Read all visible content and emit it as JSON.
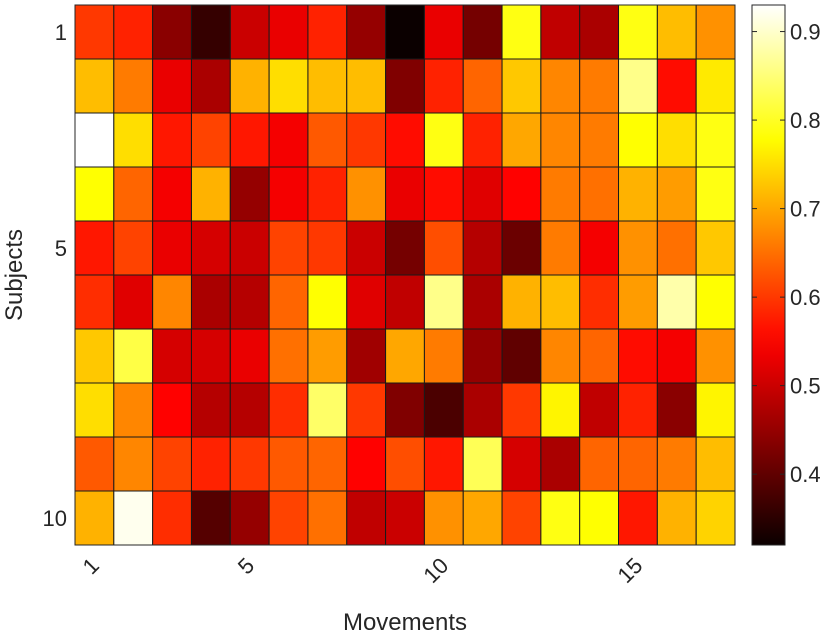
{
  "chart_data": {
    "type": "heatmap",
    "xlabel": "Movements",
    "ylabel": "Subjects",
    "x_ticks": [
      "1",
      "5",
      "10",
      "15"
    ],
    "x_tick_values": [
      1,
      5,
      10,
      15
    ],
    "y_ticks": [
      "1",
      "5",
      "10"
    ],
    "y_tick_values": [
      1,
      5,
      10
    ],
    "n_cols": 17,
    "n_rows": 10,
    "colormap": "hot",
    "clim": [
      0.32,
      0.93
    ],
    "colorbar_ticks": [
      "0.4",
      "0.5",
      "0.6",
      "0.7",
      "0.8",
      "0.9"
    ],
    "colorbar_tick_values": [
      0.4,
      0.5,
      0.6,
      0.7,
      0.8,
      0.9
    ],
    "values": [
      [
        0.6,
        0.58,
        0.44,
        0.36,
        0.5,
        0.53,
        0.58,
        0.45,
        0.32,
        0.53,
        0.42,
        0.79,
        0.49,
        0.47,
        0.79,
        0.72,
        0.68
      ],
      [
        0.72,
        0.66,
        0.53,
        0.47,
        0.71,
        0.75,
        0.72,
        0.72,
        0.43,
        0.58,
        0.64,
        0.73,
        0.67,
        0.66,
        0.86,
        0.56,
        0.76
      ],
      [
        0.93,
        0.75,
        0.57,
        0.61,
        0.57,
        0.54,
        0.63,
        0.6,
        0.56,
        0.79,
        0.58,
        0.7,
        0.67,
        0.66,
        0.78,
        0.75,
        0.79
      ],
      [
        0.78,
        0.64,
        0.54,
        0.71,
        0.45,
        0.54,
        0.58,
        0.68,
        0.53,
        0.56,
        0.52,
        0.55,
        0.66,
        0.65,
        0.71,
        0.69,
        0.79
      ],
      [
        0.57,
        0.61,
        0.53,
        0.51,
        0.5,
        0.61,
        0.6,
        0.5,
        0.42,
        0.62,
        0.48,
        0.41,
        0.66,
        0.54,
        0.68,
        0.65,
        0.73
      ],
      [
        0.59,
        0.52,
        0.67,
        0.47,
        0.48,
        0.64,
        0.78,
        0.52,
        0.49,
        0.86,
        0.47,
        0.71,
        0.72,
        0.59,
        0.69,
        0.88,
        0.78
      ],
      [
        0.73,
        0.82,
        0.51,
        0.51,
        0.53,
        0.65,
        0.69,
        0.46,
        0.7,
        0.66,
        0.45,
        0.4,
        0.67,
        0.64,
        0.56,
        0.54,
        0.68
      ],
      [
        0.75,
        0.67,
        0.55,
        0.48,
        0.48,
        0.59,
        0.84,
        0.6,
        0.43,
        0.38,
        0.47,
        0.6,
        0.77,
        0.49,
        0.58,
        0.44,
        0.77
      ],
      [
        0.63,
        0.67,
        0.61,
        0.58,
        0.6,
        0.63,
        0.64,
        0.55,
        0.62,
        0.57,
        0.83,
        0.51,
        0.47,
        0.64,
        0.64,
        0.66,
        0.72
      ],
      [
        0.71,
        0.92,
        0.59,
        0.39,
        0.45,
        0.61,
        0.65,
        0.49,
        0.5,
        0.68,
        0.7,
        0.61,
        0.79,
        0.78,
        0.57,
        0.71,
        0.74
      ]
    ]
  }
}
